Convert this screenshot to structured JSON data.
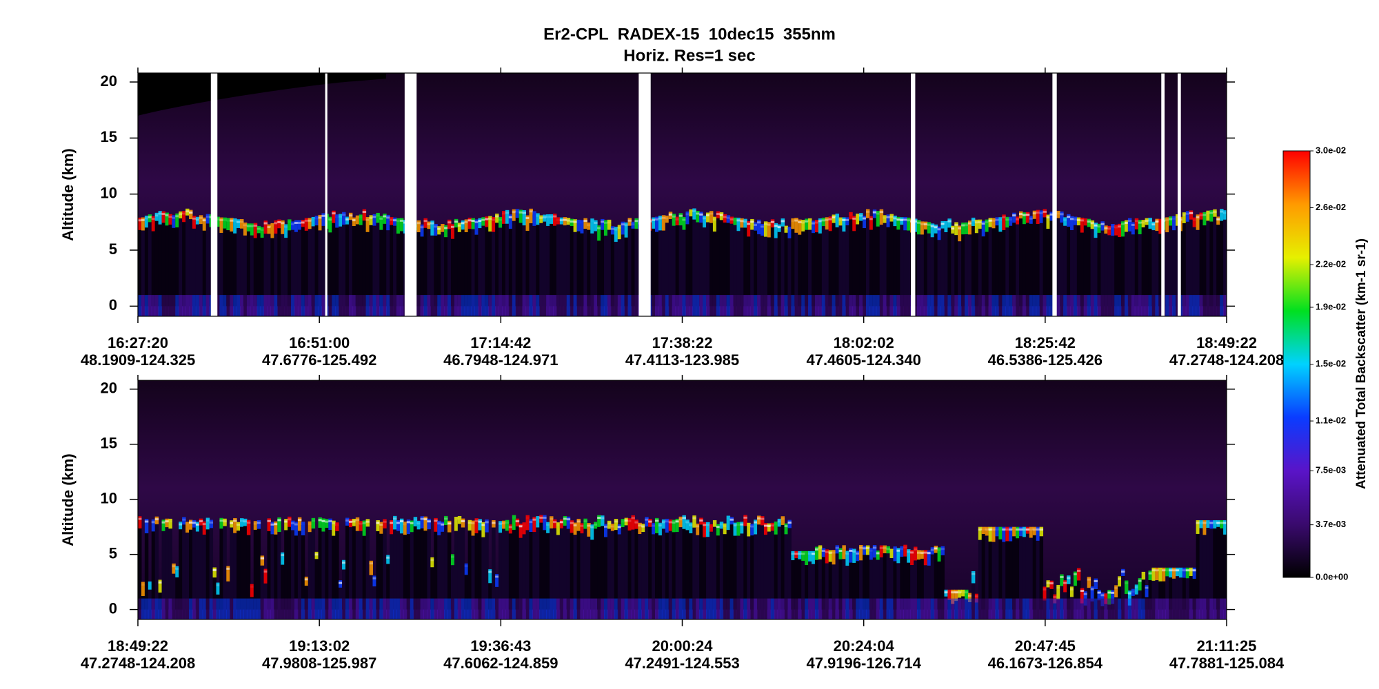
{
  "chart_data": [
    {
      "type": "heatmap",
      "title": "Er2-CPL  RADEX-15  10dec15  355nm",
      "subtitle": "Horiz. Res=1 sec",
      "ylabel": "Altitude (km)",
      "categories": [
        "16:27:20",
        "16:51:00",
        "17:14:42",
        "17:38:22",
        "18:02:02",
        "18:25:42",
        "18:49:22"
      ],
      "locations": [
        "48.1909-124.325",
        "47.6776-125.492",
        "46.7948-124.971",
        "47.4113-123.985",
        "47.4605-124.340",
        "46.5386-125.426",
        "47.2748-124.208"
      ],
      "ylim": [
        -0.9,
        20.8
      ],
      "yticks": [
        0,
        5,
        10,
        15,
        20
      ]
    },
    {
      "type": "heatmap",
      "ylabel": "Altitude (km)",
      "categories": [
        "18:49:22",
        "19:13:02",
        "19:36:43",
        "20:00:24",
        "20:24:04",
        "20:47:45",
        "21:11:25"
      ],
      "locations": [
        "47.2748-124.208",
        "47.9808-125.987",
        "47.6062-124.859",
        "47.2491-124.553",
        "47.9196-126.714",
        "46.1673-126.854",
        "47.7881-125.084"
      ],
      "ylim": [
        -0.9,
        20.8
      ],
      "yticks": [
        0,
        5,
        10,
        15,
        20
      ]
    }
  ],
  "colorbar": {
    "label": "Attenuated Total Backscatter (km-1 sr-1)",
    "clim": [
      0,
      0.03
    ],
    "ticks": [
      {
        "value": 0,
        "label": "0.0e+00"
      },
      {
        "value": 0.0037,
        "label": "3.7e-03"
      },
      {
        "value": 0.0075,
        "label": "7.5e-03"
      },
      {
        "value": 0.011,
        "label": "1.1e-02"
      },
      {
        "value": 0.015,
        "label": "1.5e-02"
      },
      {
        "value": 0.019,
        "label": "1.9e-02"
      },
      {
        "value": 0.022,
        "label": "2.2e-02"
      },
      {
        "value": 0.026,
        "label": "2.6e-02"
      },
      {
        "value": 0.03,
        "label": "3.0e-02"
      }
    ],
    "colormap": [
      "#000000",
      "#3a0a6e",
      "#5a14c8",
      "#0a3cff",
      "#00d2ff",
      "#00e020",
      "#e6f000",
      "#ff9a00",
      "#ff0000"
    ]
  }
}
